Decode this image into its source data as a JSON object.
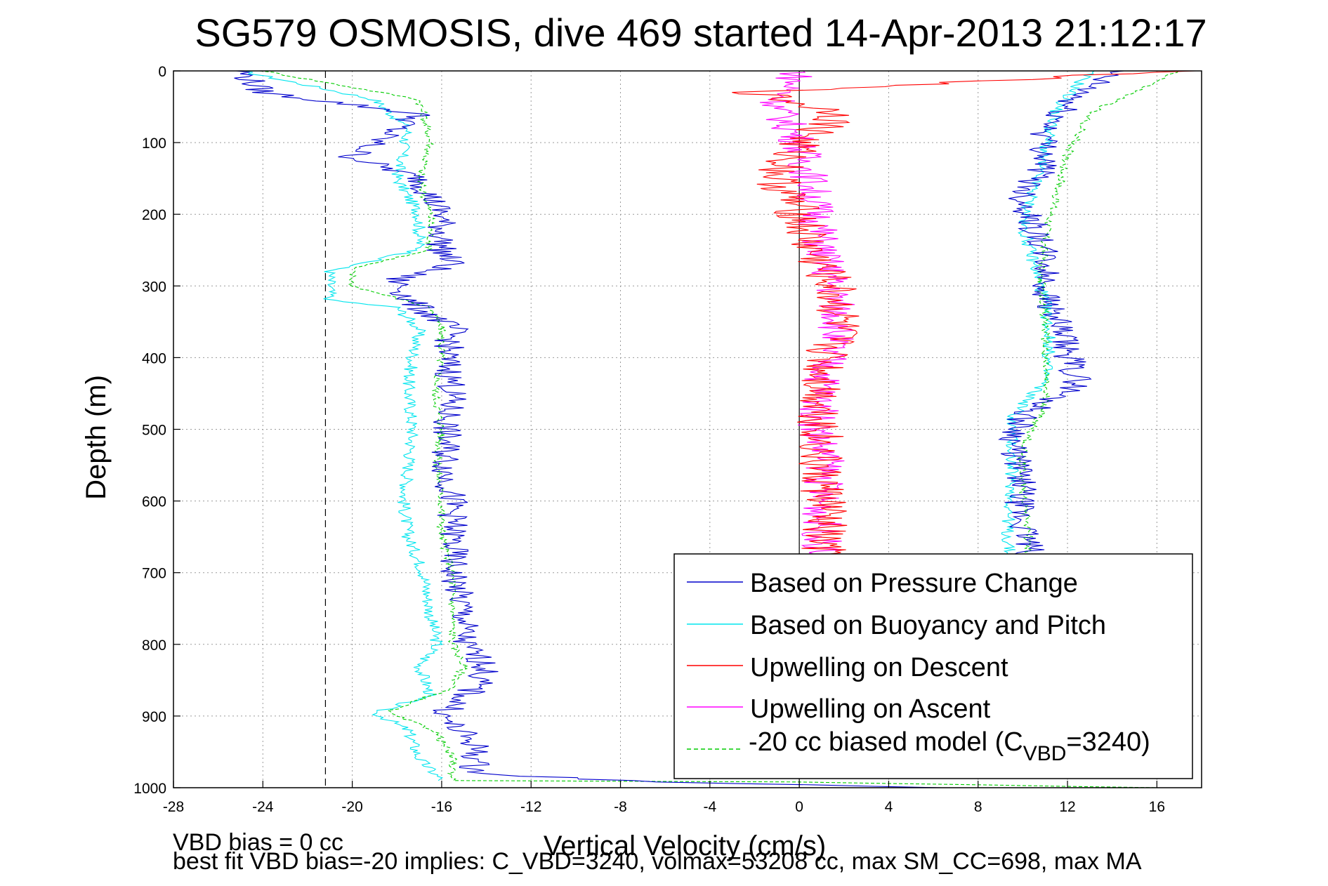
{
  "chart_data": {
    "type": "line",
    "title": "SG579 OSMOSIS, dive 469 started 14-Apr-2013 21:12:17",
    "xlabel": "Vertical Velocity (cm/s)",
    "ylabel": "Depth (m)",
    "xlim": [
      -28,
      18
    ],
    "ylim": [
      0,
      1000
    ],
    "y_reversed": true,
    "grid": true,
    "x_ticks": [
      -28,
      -24,
      -20,
      -16,
      -12,
      -8,
      -4,
      0,
      4,
      8,
      12,
      16
    ],
    "y_ticks": [
      0,
      100,
      200,
      300,
      400,
      500,
      600,
      700,
      800,
      900,
      1000
    ],
    "reference_lines": [
      {
        "x": 0,
        "style": "solid",
        "color": "#000000"
      },
      {
        "x": -21.2,
        "style": "dashed",
        "color": "#000000"
      }
    ],
    "legend_position": "bottom-right",
    "colors": {
      "pressure": "#0000cc",
      "buoyancy": "#00e5ee",
      "upwell_descent": "#ff0000",
      "upwell_ascent": "#ff00ff",
      "model": "#00cc00"
    },
    "series": [
      {
        "key": "pressure",
        "name": "Based on Pressure Change",
        "style": "solid",
        "depth": [
          0,
          30,
          60,
          120,
          150,
          200,
          250,
          270,
          290,
          320,
          360,
          400,
          440,
          500,
          560,
          600,
          650,
          700,
          760,
          800,
          830,
          860,
          900,
          940,
          980,
          993,
          995,
          1000
        ],
        "velocity": [
          -25,
          -24,
          -17,
          -20,
          -17,
          -16,
          -16,
          -15.5,
          -18,
          -17.5,
          -15.5,
          -15.8,
          -15.5,
          -15.8,
          -15.8,
          -15.5,
          -15.5,
          -15.5,
          -15,
          -15,
          -14,
          -14.5,
          -16,
          -14.5,
          -14.5,
          -6,
          0,
          6
        ],
        "velocity_ascent": [
          14,
          12,
          11,
          11,
          10,
          10.5,
          11,
          11,
          11.5,
          12,
          12.5,
          10,
          9.5,
          10,
          9.8,
          10.2,
          10.5
        ]
      },
      {
        "key": "buoyancy",
        "name": "Based on Buoyancy and Pitch",
        "style": "solid",
        "depth": [
          0,
          40,
          80,
          150,
          200,
          250,
          275,
          280,
          320,
          330,
          360,
          400,
          440,
          500,
          560,
          600,
          650,
          700,
          760,
          800,
          830,
          870,
          895,
          920,
          960,
          990
        ],
        "velocity": [
          -25,
          -19,
          -17.5,
          -18,
          -17,
          -17,
          -20.5,
          -21,
          -21,
          -18,
          -17,
          -17.3,
          -17.5,
          -17.3,
          -17.5,
          -17.7,
          -17.5,
          -16.8,
          -16.5,
          -16.2,
          -17,
          -16.5,
          -19,
          -17.5,
          -17,
          -16
        ],
        "velocity_ascent": [
          13,
          11.5,
          11,
          10.5,
          10,
          10.5,
          11,
          11.2,
          11,
          9.5,
          9.5,
          9.5,
          9.3,
          9.5
        ]
      },
      {
        "key": "upwell_descent",
        "name": "Upwelling on Descent",
        "style": "solid",
        "depth": [
          0,
          30,
          60,
          100,
          150,
          200,
          250,
          300,
          350,
          400,
          450,
          500,
          550,
          600,
          650,
          680
        ],
        "velocity": [
          17,
          -2,
          2,
          0,
          -1,
          0,
          0.5,
          1.5,
          1.8,
          1.2,
          1,
          1,
          0.8,
          1.2,
          1,
          1
        ]
      },
      {
        "key": "upwell_ascent",
        "name": "Upwelling on Ascent",
        "style": "solid",
        "depth": [
          0,
          50,
          100,
          150,
          200,
          250,
          300,
          350,
          400,
          450,
          500,
          550,
          600,
          650,
          680
        ],
        "velocity": [
          0,
          -1,
          0,
          0.5,
          0.8,
          1,
          1.5,
          1.8,
          1.3,
          1,
          0.8,
          1.2,
          1,
          1,
          1
        ]
      },
      {
        "key": "model",
        "name": "-20 cc biased model (C_VBD=3240)",
        "name_prefix": "-20 cc biased model (C",
        "name_subscript": "VBD",
        "name_suffix": "=3240)",
        "style": "dashed",
        "depth": [
          0,
          40,
          100,
          150,
          200,
          250,
          275,
          300,
          330,
          360,
          400,
          450,
          500,
          550,
          600,
          650,
          700,
          760,
          800,
          830,
          860,
          895,
          920,
          960,
          990,
          992,
          1000
        ],
        "velocity": [
          -24,
          -17,
          -16.5,
          -17,
          -16.5,
          -16.5,
          -20,
          -20,
          -16.5,
          -16,
          -16,
          -16.3,
          -16,
          -16.2,
          -16,
          -16,
          -15.5,
          -15.5,
          -15.5,
          -15,
          -15.5,
          -18.5,
          -16.3,
          -15.5,
          -15.5,
          0,
          16
        ],
        "velocity_ascent": [
          17,
          13,
          12,
          11.5,
          11,
          10.8,
          11,
          11,
          11,
          10,
          10,
          10.3,
          10
        ]
      }
    ],
    "footnotes": [
      "VBD bias = 0 cc",
      "best fit VBD bias=-20 implies: C_VBD=3240, volmax=53208 cc, max SM_CC=698, max MA"
    ]
  }
}
